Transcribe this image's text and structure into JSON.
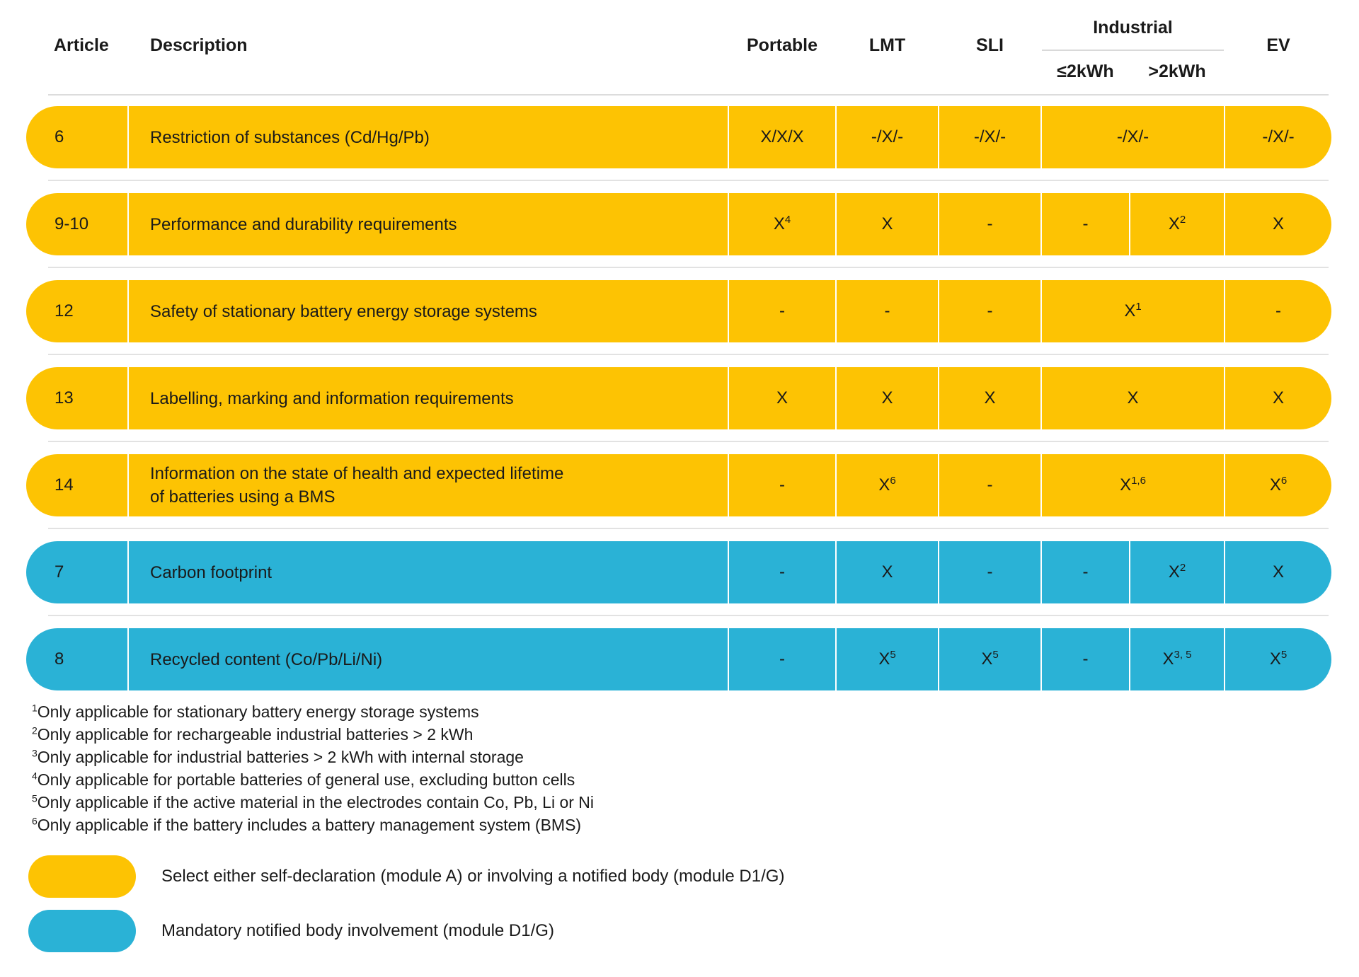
{
  "table": {
    "header": {
      "article": "Article",
      "description": "Description",
      "portable": "Portable",
      "lmt": "LMT",
      "sli": "SLI",
      "industrial": "Industrial",
      "industrial_sub_left": "≤2kWh",
      "industrial_sub_right": ">2kWh",
      "ev": "EV"
    },
    "rows": [
      {
        "article": "6",
        "color": "yellow",
        "description_lines": [
          "Restriction of substances (Cd/Hg/Pb)"
        ],
        "cells": [
          {
            "col": "portable",
            "text": "X/X/X"
          },
          {
            "col": "lmt",
            "text": "-/X/-"
          },
          {
            "col": "sli",
            "text": "-/X/-"
          },
          {
            "col": "industrial",
            "text": "-/X/-",
            "span": 2
          },
          {
            "col": "ev",
            "text": "-/X/-"
          }
        ]
      },
      {
        "article": "9-10",
        "color": "yellow",
        "description_lines": [
          "Performance and durability requirements"
        ],
        "cells": [
          {
            "col": "portable",
            "text": "X",
            "sup": "4"
          },
          {
            "col": "lmt",
            "text": "X"
          },
          {
            "col": "sli",
            "text": "-"
          },
          {
            "col": "industrial_le2kwh",
            "text": "-"
          },
          {
            "col": "industrial_gt2kwh",
            "text": "X",
            "sup": "2"
          },
          {
            "col": "ev",
            "text": "X"
          }
        ]
      },
      {
        "article": "12",
        "color": "yellow",
        "description_lines": [
          "Safety of stationary battery energy storage systems"
        ],
        "cells": [
          {
            "col": "portable",
            "text": "-"
          },
          {
            "col": "lmt",
            "text": "-"
          },
          {
            "col": "sli",
            "text": "-"
          },
          {
            "col": "industrial",
            "text": "X",
            "sup": "1",
            "span": 2
          },
          {
            "col": "ev",
            "text": "-"
          }
        ]
      },
      {
        "article": "13",
        "color": "yellow",
        "description_lines": [
          "Labelling, marking and information requirements"
        ],
        "cells": [
          {
            "col": "portable",
            "text": "X"
          },
          {
            "col": "lmt",
            "text": "X"
          },
          {
            "col": "sli",
            "text": "X"
          },
          {
            "col": "industrial",
            "text": "X",
            "span": 2
          },
          {
            "col": "ev",
            "text": "X"
          }
        ]
      },
      {
        "article": "14",
        "color": "yellow",
        "description_lines": [
          "Information on the state of health and expected lifetime",
          "of batteries using a BMS"
        ],
        "cells": [
          {
            "col": "portable",
            "text": "-"
          },
          {
            "col": "lmt",
            "text": "X",
            "sup": "6"
          },
          {
            "col": "sli",
            "text": "-"
          },
          {
            "col": "industrial",
            "text": "X",
            "sup": "1,6",
            "span": 2
          },
          {
            "col": "ev",
            "text": "X",
            "sup": "6"
          }
        ]
      },
      {
        "article": "7",
        "color": "blue",
        "description_lines": [
          "Carbon footprint"
        ],
        "cells": [
          {
            "col": "portable",
            "text": "-"
          },
          {
            "col": "lmt",
            "text": "X"
          },
          {
            "col": "sli",
            "text": "-"
          },
          {
            "col": "industrial_le2kwh",
            "text": "-"
          },
          {
            "col": "industrial_gt2kwh",
            "text": "X",
            "sup": "2"
          },
          {
            "col": "ev",
            "text": "X"
          }
        ]
      },
      {
        "article": "8",
        "color": "blue",
        "description_lines": [
          "Recycled content (Co/Pb/Li/Ni)"
        ],
        "cells": [
          {
            "col": "portable",
            "text": "-"
          },
          {
            "col": "lmt",
            "text": "X",
            "sup": "5"
          },
          {
            "col": "sli",
            "text": "X",
            "sup": "5"
          },
          {
            "col": "industrial_le2kwh",
            "text": "-"
          },
          {
            "col": "industrial_gt2kwh",
            "text": "X",
            "sup": "3, 5"
          },
          {
            "col": "ev",
            "text": "X",
            "sup": "5"
          }
        ]
      }
    ]
  },
  "footnotes": [
    {
      "marker": "1",
      "text": "Only applicable for stationary battery energy storage systems"
    },
    {
      "marker": "2",
      "text": "Only applicable for rechargeable industrial batteries > 2 kWh"
    },
    {
      "marker": "3",
      "text": "Only applicable for industrial batteries > 2 kWh with internal storage"
    },
    {
      "marker": "4",
      "text": "Only applicable for portable batteries of general use, excluding button cells"
    },
    {
      "marker": "5",
      "text": "Only applicable if the active material in the electrodes contain Co, Pb, Li or Ni"
    },
    {
      "marker": "6",
      "text": "Only applicable if the battery includes a battery management system (BMS)"
    }
  ],
  "legend": [
    {
      "key": "self-declaration-or-notified-body",
      "color": "#FDC303",
      "text": "Select either self-declaration (module A) or involving a notified body (module D1/G)"
    },
    {
      "key": "mandatory-notified-body",
      "color": "#2AB2D6",
      "text": "Mandatory notified body involvement (module D1/G)"
    }
  ],
  "colors": {
    "yellow": "#FDC303",
    "blue": "#2AB2D6",
    "text": "#1A1A1A"
  }
}
